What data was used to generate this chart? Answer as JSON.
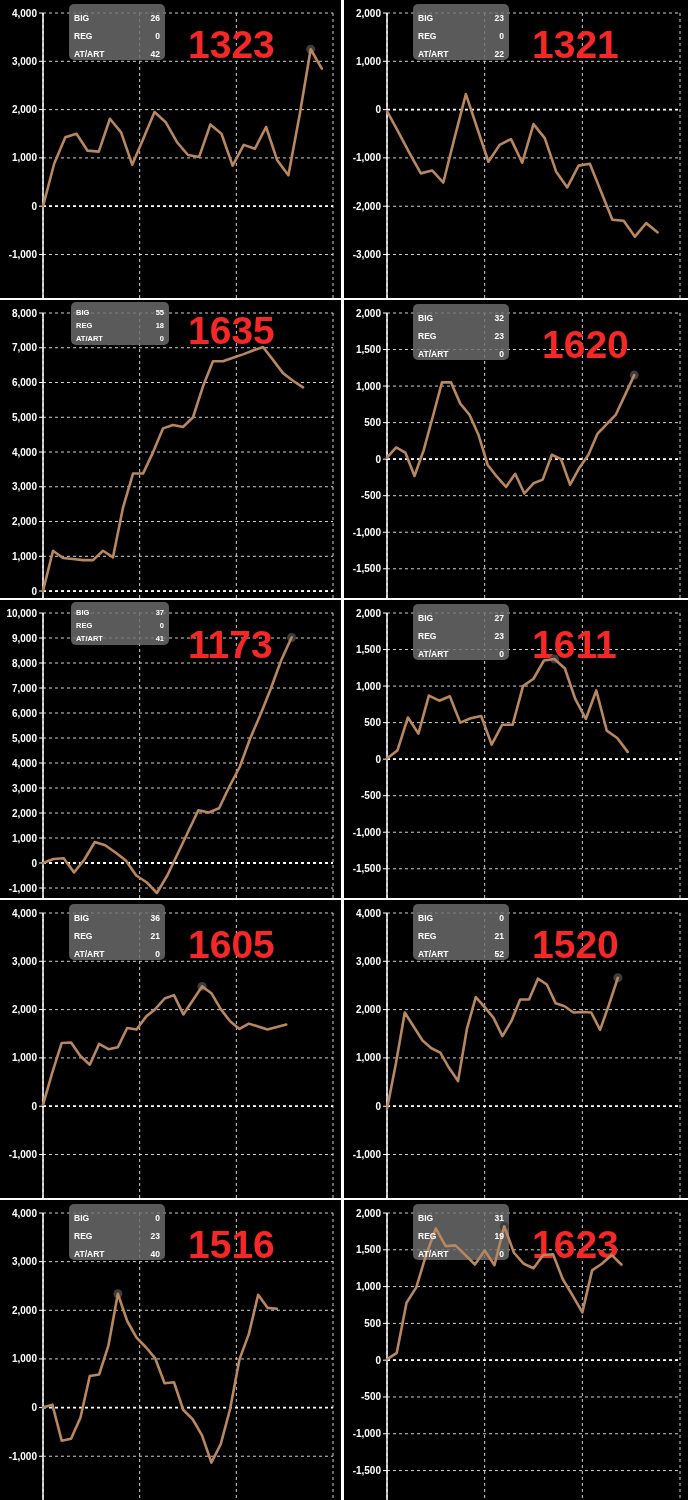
{
  "chart_data": [
    {
      "type": "line",
      "title": "1323",
      "annotations": [
        "BIG",
        "26",
        "REG",
        "0",
        "AT/ART",
        "42"
      ],
      "categories": [
        null,
        null,
        null,
        null,
        null,
        null,
        null,
        null,
        null,
        null,
        null,
        null,
        null,
        null,
        null,
        null,
        null,
        null,
        null,
        null,
        null,
        null,
        null,
        null,
        null,
        null,
        null
      ],
      "series": [
        {
          "color": "#b8875f",
          "values": [
            0,
            880,
            1430,
            1500,
            1150,
            1130,
            1810,
            1530,
            860,
            1400,
            1950,
            1740,
            1330,
            1060,
            1020,
            1690,
            1500,
            840,
            1270,
            1190,
            1640,
            950,
            640,
            1880,
            3250,
            2850,
            null
          ]
        },
        {
          "type": "scatter",
          "marker": "circle",
          "color": "#3d3d3d",
          "values": [
            null,
            null,
            null,
            null,
            null,
            null,
            null,
            null,
            null,
            null,
            null,
            null,
            null,
            null,
            null,
            null,
            null,
            null,
            null,
            null,
            null,
            null,
            null,
            null,
            3250,
            null,
            null
          ]
        }
      ],
      "ylim": [
        -1900,
        4000
      ],
      "yticks": [
        {
          "value": -1000,
          "label": "-1,000"
        },
        0,
        {
          "value": 1000,
          "label": "1,000"
        },
        {
          "value": 2000,
          "label": "2,000"
        },
        {
          "value": 3000,
          "label": "3,000"
        },
        {
          "value": 4000,
          "label": "4,000"
        }
      ],
      "ref_lines": [
        {
          "axis": "y",
          "value": 0,
          "color": "#ffffff",
          "line_style": "dashed"
        }
      ],
      "grid": true,
      "tick_labels": "y"
    },
    {
      "type": "line",
      "title": "1321",
      "annotations": [
        "BIG",
        "23",
        "REG",
        "0",
        "AT/ART",
        "22"
      ],
      "categories": [
        null,
        null,
        null,
        null,
        null,
        null,
        null,
        null,
        null,
        null,
        null,
        null,
        null,
        null,
        null,
        null,
        null,
        null,
        null,
        null,
        null,
        null,
        null,
        null,
        null,
        null,
        null
      ],
      "series": [
        {
          "color": "#b8875f",
          "values": [
            -30,
            -460,
            -900,
            -1320,
            -1260,
            -1510,
            -580,
            320,
            -380,
            -1080,
            -730,
            -610,
            -1100,
            -300,
            -590,
            -1280,
            -1610,
            -1160,
            -1120,
            -1700,
            -2280,
            -2300,
            -2630,
            -2350,
            -2540,
            null,
            null
          ]
        }
      ],
      "ylim": [
        -3900,
        2000
      ],
      "yticks": [
        {
          "value": -3000,
          "label": "-3,000"
        },
        {
          "value": -2000,
          "label": "-2,000"
        },
        {
          "value": -1000,
          "label": "-1,000"
        },
        0,
        {
          "value": 1000,
          "label": "1,000"
        },
        {
          "value": 2000,
          "label": "2,000"
        }
      ],
      "ref_lines": [
        {
          "axis": "y",
          "value": 0,
          "color": "#ffffff",
          "line_style": "dashed"
        }
      ],
      "grid": true,
      "tick_labels": "y"
    },
    {
      "type": "line",
      "title": "1635",
      "annotations": [
        "BIG",
        "55",
        "REG",
        "18",
        "AT/ART",
        "0"
      ],
      "categories": [
        null,
        null,
        null,
        null,
        null,
        null,
        null,
        null,
        null,
        null,
        null,
        null,
        null,
        null,
        null,
        null,
        null,
        null,
        null,
        null,
        null,
        null,
        null,
        null,
        null,
        null,
        null,
        null,
        null,
        null
      ],
      "series": [
        {
          "color": "#b8875f",
          "values": [
            0,
            1160,
            950,
            920,
            890,
            890,
            1160,
            970,
            2400,
            3380,
            3380,
            3990,
            4680,
            4780,
            4720,
            5000,
            5890,
            6610,
            6610,
            6710,
            6810,
            6920,
            7020,
            6650,
            6270,
            6050,
            5860,
            null,
            null,
            null
          ]
        }
      ],
      "ylim": [
        -200,
        8000
      ],
      "yticks": [
        0,
        {
          "value": 1000,
          "label": "1,000"
        },
        {
          "value": 2000,
          "label": "2,000"
        },
        {
          "value": 3000,
          "label": "3,000"
        },
        {
          "value": 4000,
          "label": "4,000"
        },
        {
          "value": 5000,
          "label": "5,000"
        },
        {
          "value": 6000,
          "label": "6,000"
        },
        {
          "value": 7000,
          "label": "7,000"
        },
        {
          "value": 8000,
          "label": "8,000"
        }
      ],
      "ref_lines": [
        {
          "axis": "y",
          "value": 0,
          "color": "#ffffff",
          "line_style": "dashed"
        }
      ],
      "grid": true,
      "tick_labels": "y"
    },
    {
      "type": "line",
      "title": "1620",
      "annotations": [
        "BIG",
        "32",
        "REG",
        "23",
        "AT/ART",
        "0"
      ],
      "categories": [
        null,
        null,
        null,
        null,
        null,
        null,
        null,
        null,
        null,
        null,
        null,
        null,
        null,
        null,
        null,
        null,
        null,
        null,
        null,
        null,
        null,
        null,
        null,
        null,
        null,
        null,
        null,
        null,
        null,
        null,
        null,
        null,
        null
      ],
      "series": [
        {
          "color": "#b8875f",
          "values": [
            20,
            160,
            90,
            -230,
            120,
            580,
            1050,
            1050,
            760,
            610,
            330,
            -80,
            -240,
            -380,
            -200,
            -470,
            -330,
            -280,
            60,
            0,
            -350,
            -120,
            60,
            350,
            480,
            610,
            880,
            1150,
            null,
            null,
            null,
            null,
            null
          ]
        },
        {
          "type": "scatter",
          "marker": "circle",
          "color": "#3d3d3d",
          "values": [
            null,
            null,
            null,
            null,
            null,
            null,
            null,
            null,
            null,
            null,
            null,
            null,
            null,
            null,
            null,
            null,
            null,
            null,
            null,
            null,
            null,
            null,
            null,
            null,
            null,
            null,
            null,
            1150,
            null,
            null,
            null,
            null,
            null
          ]
        }
      ],
      "ylim": [
        -1900,
        2000
      ],
      "yticks": [
        {
          "value": -1500,
          "label": "-1,500"
        },
        {
          "value": -1000,
          "label": "-1,000"
        },
        -500,
        0,
        500,
        {
          "value": 1000,
          "label": "1,000"
        },
        {
          "value": 1500,
          "label": "1,500"
        },
        {
          "value": 2000,
          "label": "2,000"
        }
      ],
      "ref_lines": [
        {
          "axis": "y",
          "value": 0,
          "color": "#ffffff",
          "line_style": "dashed"
        }
      ],
      "grid": true,
      "tick_labels": "y"
    },
    {
      "type": "line",
      "title": "1173",
      "annotations": [
        "BIG",
        "37",
        "REG",
        "0",
        "AT/ART",
        "41"
      ],
      "categories": [
        null,
        null,
        null,
        null,
        null,
        null,
        null,
        null,
        null,
        null,
        null,
        null,
        null,
        null,
        null,
        null,
        null,
        null,
        null,
        null,
        null,
        null,
        null,
        null,
        null,
        null,
        null,
        null,
        null
      ],
      "series": [
        {
          "color": "#b8875f",
          "values": [
            0,
            160,
            190,
            -380,
            140,
            840,
            710,
            420,
            100,
            -500,
            -770,
            -1200,
            -500,
            370,
            1240,
            2110,
            2020,
            2190,
            3060,
            3850,
            4980,
            5940,
            6980,
            8110,
            9020,
            null,
            null,
            null,
            null
          ]
        },
        {
          "type": "scatter",
          "marker": "circle",
          "color": "#3d3d3d",
          "values": [
            null,
            null,
            null,
            null,
            null,
            null,
            null,
            null,
            null,
            null,
            null,
            null,
            null,
            null,
            null,
            null,
            null,
            null,
            null,
            null,
            null,
            null,
            null,
            null,
            9020,
            null,
            null,
            null,
            null
          ]
        }
      ],
      "ylim": [
        -1400,
        10000
      ],
      "yticks": [
        {
          "value": -1000,
          "label": "-1,000"
        },
        0,
        {
          "value": 1000,
          "label": "1,000"
        },
        {
          "value": 2000,
          "label": "2,000"
        },
        {
          "value": 3000,
          "label": "3,000"
        },
        {
          "value": 4000,
          "label": "4,000"
        },
        {
          "value": 5000,
          "label": "5,000"
        },
        {
          "value": 6000,
          "label": "6,000"
        },
        {
          "value": 7000,
          "label": "7,000"
        },
        {
          "value": 8000,
          "label": "8,000"
        },
        {
          "value": 9000,
          "label": "9,000"
        },
        {
          "value": 10000,
          "label": "10,000"
        }
      ],
      "ref_lines": [
        {
          "axis": "y",
          "value": 0,
          "color": "#ffffff",
          "line_style": "dashed"
        }
      ],
      "grid": true,
      "tick_labels": "y"
    },
    {
      "type": "line",
      "title": "1611",
      "annotations": [
        "BIG",
        "27",
        "REG",
        "23",
        "AT/ART",
        "0"
      ],
      "categories": [
        null,
        null,
        null,
        null,
        null,
        null,
        null,
        null,
        null,
        null,
        null,
        null,
        null,
        null,
        null,
        null,
        null,
        null,
        null,
        null,
        null,
        null,
        null,
        null,
        null,
        null,
        null,
        null,
        null
      ],
      "series": [
        {
          "color": "#b8875f",
          "values": [
            10,
            120,
            570,
            350,
            870,
            800,
            860,
            500,
            560,
            590,
            200,
            470,
            470,
            1000,
            1100,
            1350,
            1370,
            1240,
            820,
            550,
            940,
            390,
            290,
            100,
            null,
            null,
            null,
            null,
            null
          ]
        },
        {
          "type": "scatter",
          "marker": "circle",
          "color": "#3d3d3d",
          "values": [
            null,
            null,
            null,
            null,
            null,
            null,
            null,
            null,
            null,
            null,
            null,
            null,
            null,
            null,
            null,
            null,
            1370,
            null,
            null,
            null,
            null,
            null,
            null,
            null,
            null,
            null,
            null,
            null,
            null
          ]
        }
      ],
      "ylim": [
        -1900,
        2000
      ],
      "yticks": [
        {
          "value": -1500,
          "label": "-1,500"
        },
        {
          "value": -1000,
          "label": "-1,000"
        },
        -500,
        0,
        500,
        {
          "value": 1000,
          "label": "1,000"
        },
        {
          "value": 1500,
          "label": "1,500"
        },
        {
          "value": 2000,
          "label": "2,000"
        }
      ],
      "ref_lines": [
        {
          "axis": "y",
          "value": 0,
          "color": "#ffffff",
          "line_style": "dashed"
        }
      ],
      "grid": true,
      "tick_labels": "y"
    },
    {
      "type": "line",
      "title": "1605",
      "annotations": [
        "BIG",
        "36",
        "REG",
        "21",
        "AT/ART",
        "0"
      ],
      "categories": [
        null,
        null,
        null,
        null,
        null,
        null,
        null,
        null,
        null,
        null,
        null,
        null,
        null,
        null,
        null,
        null,
        null,
        null,
        null,
        null,
        null,
        null,
        null,
        null,
        null,
        null,
        null,
        null,
        null,
        null,
        null,
        null
      ],
      "series": [
        {
          "color": "#b8875f",
          "values": [
            30,
            700,
            1310,
            1320,
            1040,
            860,
            1290,
            1180,
            1220,
            1620,
            1590,
            1850,
            2010,
            2230,
            2300,
            1900,
            2190,
            2480,
            2340,
            2010,
            1760,
            1600,
            1710,
            1650,
            1590,
            1640,
            1690,
            null,
            null,
            null,
            null,
            null
          ]
        },
        {
          "type": "scatter",
          "marker": "circle",
          "color": "#3d3d3d",
          "values": [
            null,
            null,
            null,
            null,
            null,
            null,
            null,
            null,
            null,
            null,
            null,
            null,
            null,
            null,
            null,
            null,
            null,
            2480,
            null,
            null,
            null,
            null,
            null,
            null,
            null,
            null,
            null,
            null,
            null,
            null,
            null,
            null
          ]
        }
      ],
      "ylim": [
        -1900,
        4000
      ],
      "yticks": [
        {
          "value": -1000,
          "label": "-1,000"
        },
        0,
        {
          "value": 1000,
          "label": "1,000"
        },
        {
          "value": 2000,
          "label": "2,000"
        },
        {
          "value": 3000,
          "label": "3,000"
        },
        {
          "value": 4000,
          "label": "4,000"
        }
      ],
      "ref_lines": [
        {
          "axis": "y",
          "value": 0,
          "color": "#ffffff",
          "line_style": "dashed"
        }
      ],
      "grid": true,
      "tick_labels": "y"
    },
    {
      "type": "line",
      "title": "1520",
      "annotations": [
        "BIG",
        "0",
        "REG",
        "21",
        "AT/ART",
        "52"
      ],
      "categories": [
        null,
        null,
        null,
        null,
        null,
        null,
        null,
        null,
        null,
        null,
        null,
        null,
        null,
        null,
        null,
        null,
        null,
        null,
        null,
        null,
        null,
        null,
        null,
        null,
        null,
        null,
        null,
        null,
        null,
        null,
        null,
        null,
        null,
        null
      ],
      "series": [
        {
          "color": "#b8875f",
          "values": [
            -60,
            880,
            1940,
            1650,
            1360,
            1200,
            1110,
            790,
            520,
            1600,
            2260,
            2050,
            1830,
            1450,
            1760,
            2210,
            2210,
            2640,
            2520,
            2130,
            2070,
            1940,
            1950,
            1940,
            1580,
            2100,
            2660,
            null,
            null,
            null,
            null,
            null,
            null,
            null
          ]
        },
        {
          "type": "scatter",
          "marker": "circle",
          "color": "#3d3d3d",
          "values": [
            null,
            null,
            null,
            null,
            null,
            null,
            null,
            null,
            null,
            null,
            null,
            null,
            null,
            null,
            null,
            null,
            null,
            null,
            null,
            null,
            null,
            null,
            null,
            null,
            null,
            null,
            2660,
            null,
            null,
            null,
            null,
            null,
            null,
            null
          ]
        }
      ],
      "ylim": [
        -1900,
        4000
      ],
      "yticks": [
        {
          "value": -1000,
          "label": "-1,000"
        },
        0,
        {
          "value": 1000,
          "label": "1,000"
        },
        {
          "value": 2000,
          "label": "2,000"
        },
        {
          "value": 3000,
          "label": "3,000"
        },
        {
          "value": 4000,
          "label": "4,000"
        }
      ],
      "ref_lines": [
        {
          "axis": "y",
          "value": 0,
          "color": "#ffffff",
          "line_style": "dashed"
        }
      ],
      "grid": true,
      "tick_labels": "y"
    },
    {
      "type": "line",
      "title": "1516",
      "annotations": [
        "BIG",
        "0",
        "REG",
        "23",
        "AT/ART",
        "40"
      ],
      "categories": [
        null,
        null,
        null,
        null,
        null,
        null,
        null,
        null,
        null,
        null,
        null,
        null,
        null,
        null,
        null,
        null,
        null,
        null,
        null,
        null,
        null,
        null,
        null,
        null,
        null,
        null,
        null,
        null,
        null,
        null,
        null,
        null
      ],
      "series": [
        {
          "color": "#b8875f",
          "values": [
            0,
            60,
            -680,
            -640,
            -210,
            650,
            680,
            1280,
            2340,
            1780,
            1440,
            1240,
            1010,
            500,
            520,
            -50,
            -240,
            -570,
            -1130,
            -750,
            -30,
            990,
            1510,
            2320,
            2050,
            2030,
            null,
            null,
            null,
            null,
            null,
            null
          ]
        },
        {
          "type": "scatter",
          "marker": "circle",
          "color": "#3d3d3d",
          "values": [
            null,
            null,
            null,
            null,
            null,
            null,
            null,
            null,
            2340,
            null,
            null,
            null,
            null,
            null,
            null,
            null,
            null,
            null,
            null,
            null,
            null,
            null,
            null,
            null,
            null,
            null,
            null,
            null,
            null,
            null,
            null,
            null
          ]
        }
      ],
      "ylim": [
        -1900,
        4000
      ],
      "yticks": [
        {
          "value": -1000,
          "label": "-1,000"
        },
        0,
        {
          "value": 1000,
          "label": "1,000"
        },
        {
          "value": 2000,
          "label": "2,000"
        },
        {
          "value": 3000,
          "label": "3,000"
        },
        {
          "value": 4000,
          "label": "4,000"
        }
      ],
      "ref_lines": [
        {
          "axis": "y",
          "value": 0,
          "color": "#ffffff",
          "line_style": "dashed"
        }
      ],
      "grid": true,
      "tick_labels": "y"
    },
    {
      "type": "line",
      "title": "1623",
      "annotations": [
        "BIG",
        "31",
        "REG",
        "19",
        "AT/ART",
        "0"
      ],
      "categories": [
        null,
        null,
        null,
        null,
        null,
        null,
        null,
        null,
        null,
        null,
        null,
        null,
        null,
        null,
        null,
        null,
        null,
        null,
        null,
        null,
        null,
        null,
        null,
        null,
        null,
        null,
        null,
        null,
        null,
        null,
        null
      ],
      "series": [
        {
          "color": "#b8875f",
          "values": [
            10,
            100,
            780,
            990,
            1430,
            1790,
            1550,
            1560,
            1430,
            1300,
            1490,
            1290,
            1820,
            1460,
            1310,
            1250,
            1430,
            1440,
            1100,
            880,
            650,
            1220,
            1310,
            1430,
            1300,
            null,
            null,
            null,
            null,
            null,
            null
          ]
        },
        {
          "type": "scatter",
          "marker": "circle",
          "color": "#3d3d3d",
          "values": [
            null,
            null,
            null,
            null,
            null,
            null,
            null,
            null,
            null,
            null,
            null,
            null,
            1820,
            null,
            null,
            null,
            null,
            null,
            null,
            null,
            null,
            null,
            null,
            null,
            null,
            null,
            null,
            null,
            null,
            null,
            null
          ]
        }
      ],
      "ylim": [
        -1900,
        2000
      ],
      "yticks": [
        {
          "value": -1500,
          "label": "-1,500"
        },
        {
          "value": -1000,
          "label": "-1,000"
        },
        -500,
        0,
        500,
        {
          "value": 1000,
          "label": "1,000"
        },
        {
          "value": 1500,
          "label": "1,500"
        },
        {
          "value": 2000,
          "label": "2,000"
        }
      ],
      "ref_lines": [
        {
          "axis": "y",
          "value": 0,
          "color": "#ffffff",
          "line_style": "dashed"
        }
      ],
      "grid": true,
      "tick_labels": "y"
    }
  ]
}
